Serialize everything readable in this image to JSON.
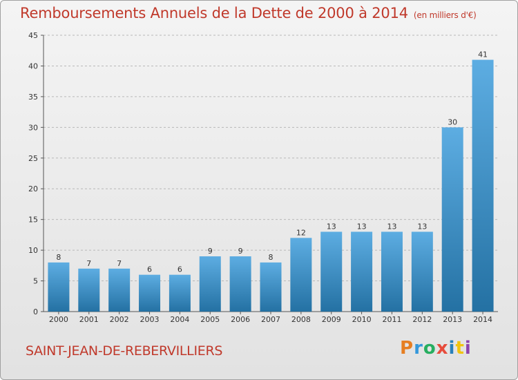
{
  "header": {
    "title": "Remboursements Annuels de la Dette de 2000 à 2014",
    "unit": "(en milliers d'€)"
  },
  "footer": {
    "commune": "SAINT-JEAN-DE-REBERVILLIERS",
    "logo": "Proxiti",
    "logo_colors": [
      "#e67e22",
      "#3498db",
      "#27ae60",
      "#e74c3c",
      "#2980b9",
      "#f1c40f",
      "#8e44ad"
    ]
  },
  "colors": {
    "accent": "#c0392b",
    "bar_light": "#5dade2",
    "bar_dark": "#2471a3",
    "grid": "#b8b8b8",
    "axis_text": "#333333"
  },
  "chart_data": {
    "type": "bar",
    "title": "Remboursements Annuels de la Dette de 2000 à 2014",
    "xlabel": "",
    "ylabel": "",
    "ylim": [
      0,
      45
    ],
    "yticks": [
      0,
      5,
      10,
      15,
      20,
      25,
      30,
      35,
      40,
      45
    ],
    "grid": true,
    "categories": [
      "2000",
      "2001",
      "2002",
      "2003",
      "2004",
      "2005",
      "2006",
      "2007",
      "2008",
      "2009",
      "2010",
      "2011",
      "2012",
      "2013",
      "2014"
    ],
    "values": [
      8,
      7,
      7,
      6,
      6,
      9,
      9,
      8,
      12,
      13,
      13,
      13,
      13,
      30,
      41
    ]
  }
}
